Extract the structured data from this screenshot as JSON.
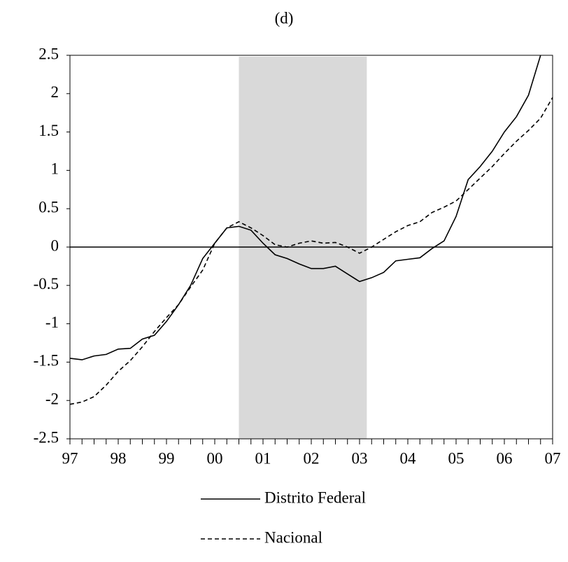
{
  "chart_data": {
    "type": "line",
    "title": "(d)",
    "categories": [
      "97",
      null,
      null,
      null,
      "98",
      null,
      null,
      null,
      "99",
      null,
      null,
      null,
      "00",
      null,
      null,
      null,
      "01",
      null,
      null,
      null,
      "02",
      null,
      null,
      null,
      "03",
      null,
      null,
      null,
      "04",
      null,
      null,
      null,
      "05",
      null,
      null,
      null,
      "06",
      null,
      null,
      null,
      "07"
    ],
    "series": [
      {
        "name": "Distrito Federal",
        "color": "#000000",
        "dash": "none",
        "values": [
          -1.45,
          -1.47,
          -1.42,
          -1.4,
          -1.33,
          -1.32,
          -1.2,
          -1.15,
          -0.97,
          -0.75,
          -0.5,
          -0.15,
          0.05,
          0.25,
          0.27,
          0.22,
          0.05,
          -0.1,
          -0.15,
          -0.22,
          -0.28,
          -0.28,
          -0.25,
          -0.35,
          -0.45,
          -0.4,
          -0.33,
          -0.18,
          -0.16,
          -0.14,
          -0.02,
          0.08,
          0.4,
          0.88,
          1.05,
          1.25,
          1.5,
          1.7,
          1.98,
          2.5,
          null
        ]
      },
      {
        "name": "Nacional",
        "color": "#000000",
        "dash": "6 4",
        "values": [
          -2.05,
          -2.02,
          -1.95,
          -1.8,
          -1.62,
          -1.48,
          -1.3,
          -1.1,
          -0.92,
          -0.75,
          -0.52,
          -0.3,
          0.05,
          0.25,
          0.33,
          0.25,
          0.15,
          0.03,
          0.0,
          0.05,
          0.08,
          0.05,
          0.06,
          0.0,
          -0.08,
          0.0,
          0.1,
          0.2,
          0.28,
          0.33,
          0.45,
          0.52,
          0.6,
          0.75,
          0.9,
          1.05,
          1.22,
          1.38,
          1.52,
          1.68,
          1.95
        ]
      }
    ],
    "ylim": [
      -2.5,
      2.5
    ],
    "yticks": [
      -2.5,
      -2,
      -1.5,
      -1,
      -0.5,
      0,
      0.5,
      1,
      1.5,
      2,
      2.5
    ],
    "shade": {
      "from": 14,
      "to": 24.6,
      "color": "#d9d9d9"
    },
    "grid": false,
    "legend": "bottom"
  }
}
